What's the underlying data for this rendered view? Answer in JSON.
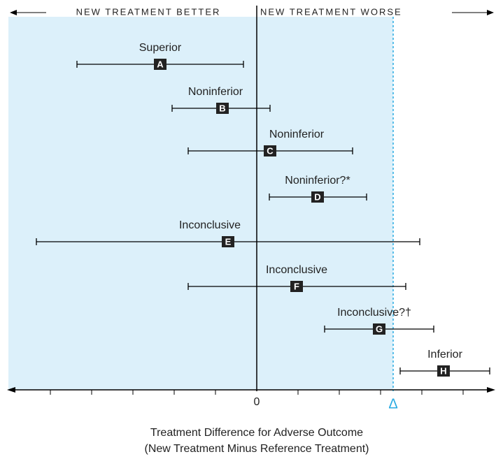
{
  "header": {
    "left": "NEW TREATMENT BETTER",
    "right": "NEW TREATMENT WORSE"
  },
  "rows": [
    {
      "letter": "A",
      "label": "Superior"
    },
    {
      "letter": "B",
      "label": "Noninferior"
    },
    {
      "letter": "C",
      "label": "Noninferior"
    },
    {
      "letter": "D",
      "label": "Noninferior?*"
    },
    {
      "letter": "E",
      "label": "Inconclusive"
    },
    {
      "letter": "F",
      "label": "Inconclusive"
    },
    {
      "letter": "G",
      "label": "Inconclusive?†"
    },
    {
      "letter": "H",
      "label": "Inferior"
    }
  ],
  "axis": {
    "zero": "0",
    "delta": "Δ",
    "title_line1": "Treatment Difference for Adverse Outcome",
    "title_line2": "(New Treatment Minus Reference Treatment)"
  }
}
